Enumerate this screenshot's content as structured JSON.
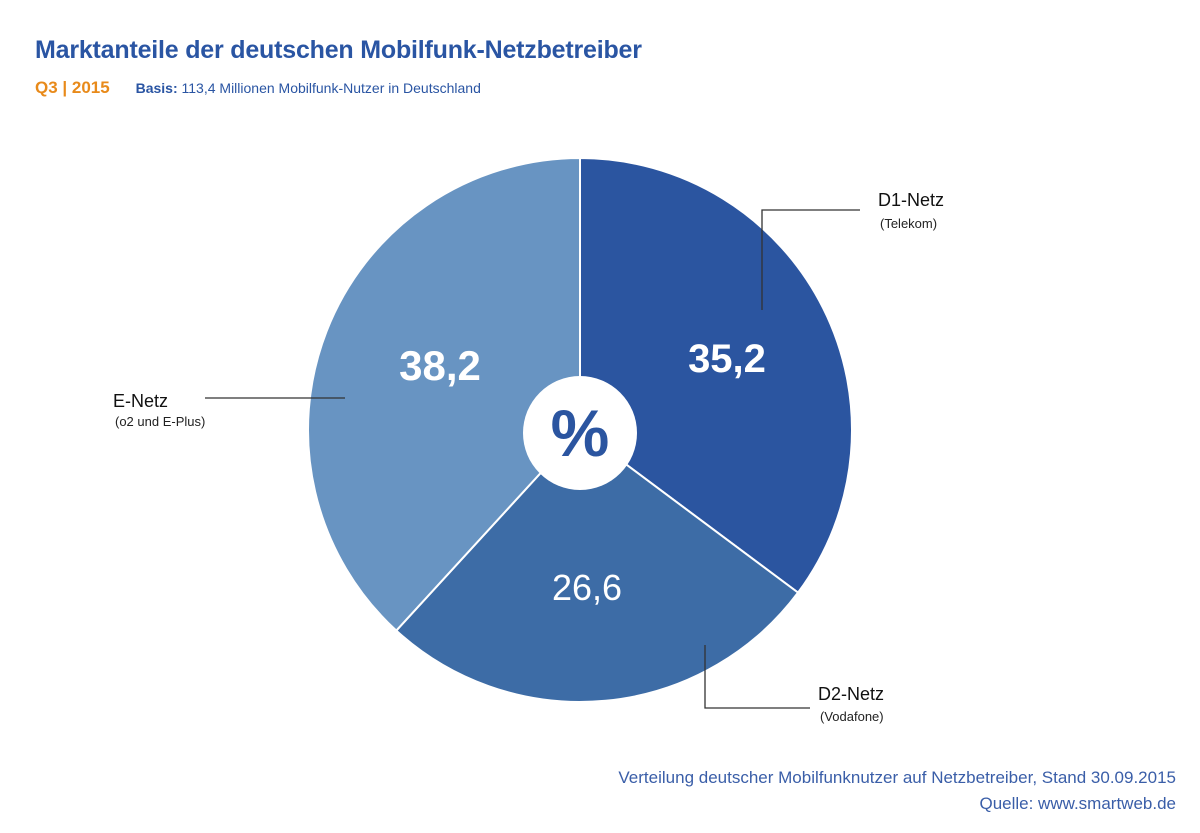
{
  "chart_data": {
    "type": "pie",
    "title": "Marktanteile der deutschen Mobilfunk-Netzbetreiber",
    "period": "Q3 | 2015",
    "basis_label": "Basis:",
    "basis_text": "113,4 Millionen Mobilfunk-Nutzer in Deutschland",
    "center_label": "%",
    "slices": [
      {
        "name": "D1-Netz",
        "sub": "(Telekom)",
        "value": 35.2,
        "label": "35,2",
        "color": "#2b55a0"
      },
      {
        "name": "D2-Netz",
        "sub": "(Vodafone)",
        "value": 26.6,
        "label": "26,6",
        "color": "#3d6ca6"
      },
      {
        "name": "E-Netz",
        "sub": "(o2 und E-Plus)",
        "value": 38.2,
        "label": "38,2",
        "color": "#6894c2"
      }
    ]
  },
  "footer": {
    "line1": "Verteilung deutscher Mobilfunknutzer auf Netzbetreiber, Stand 30.09.2015",
    "line2": "Quelle: www.smartweb.de"
  }
}
